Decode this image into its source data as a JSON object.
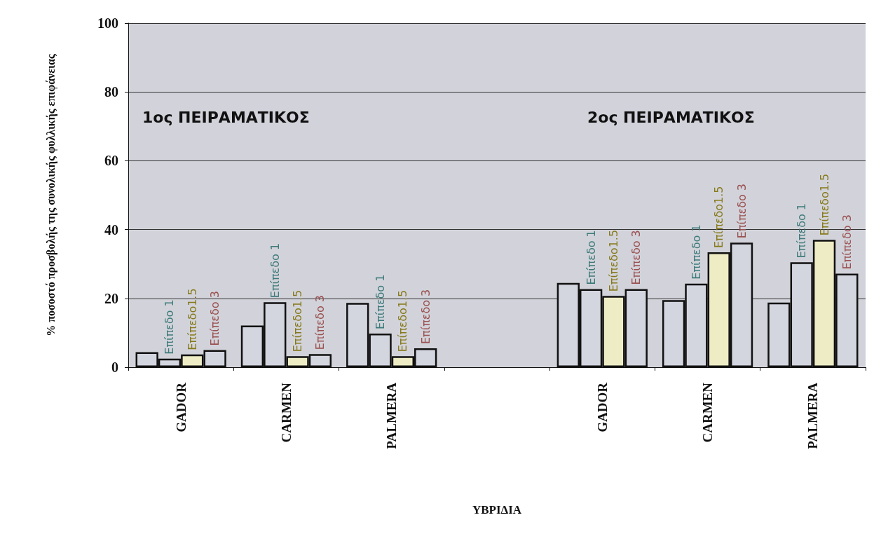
{
  "chart_data": {
    "type": "bar",
    "xlabel": "ΥΒΡΙΔΙΑ",
    "ylabel": "% ποσοστό προσβολής της συνολικής φυλλικής επιφάνειας",
    "categories": [
      "GADOR",
      "CARMEN",
      "PALMERA",
      null,
      "GADOR",
      "CARMEN",
      "PALMERA"
    ],
    "series": [
      {
        "color": "#d3d5df",
        "values": [
          4.4,
          12.1,
          18.7,
          null,
          24.5,
          19.5,
          18.8
        ]
      },
      {
        "name": "Επίπεδο 1",
        "color": "#d3d5df",
        "values": [
          2.5,
          18.9,
          9.8,
          null,
          22.7,
          24.3,
          30.5
        ]
      },
      {
        "name": "Επίπεδο1.5",
        "color": "#eeecc4",
        "values": [
          3.7,
          3.2,
          3.2,
          null,
          20.7,
          33.4,
          37.0
        ]
      },
      {
        "name": "Επίπεδο 3",
        "color": "#d3d5df",
        "values": [
          5.0,
          3.8,
          5.5,
          null,
          22.7,
          36.2,
          27.2
        ]
      }
    ],
    "ylim": [
      0,
      100
    ],
    "yticks": [
      0,
      20,
      40,
      60,
      80,
      100
    ],
    "grid": "y",
    "legend": false,
    "annotations": [
      "1ος ΠΕΙΡΑΜΑΤΙΚΟΣ",
      "2ος ΠΕΙΡΑΜΑΤΙΚΟΣ"
    ]
  }
}
